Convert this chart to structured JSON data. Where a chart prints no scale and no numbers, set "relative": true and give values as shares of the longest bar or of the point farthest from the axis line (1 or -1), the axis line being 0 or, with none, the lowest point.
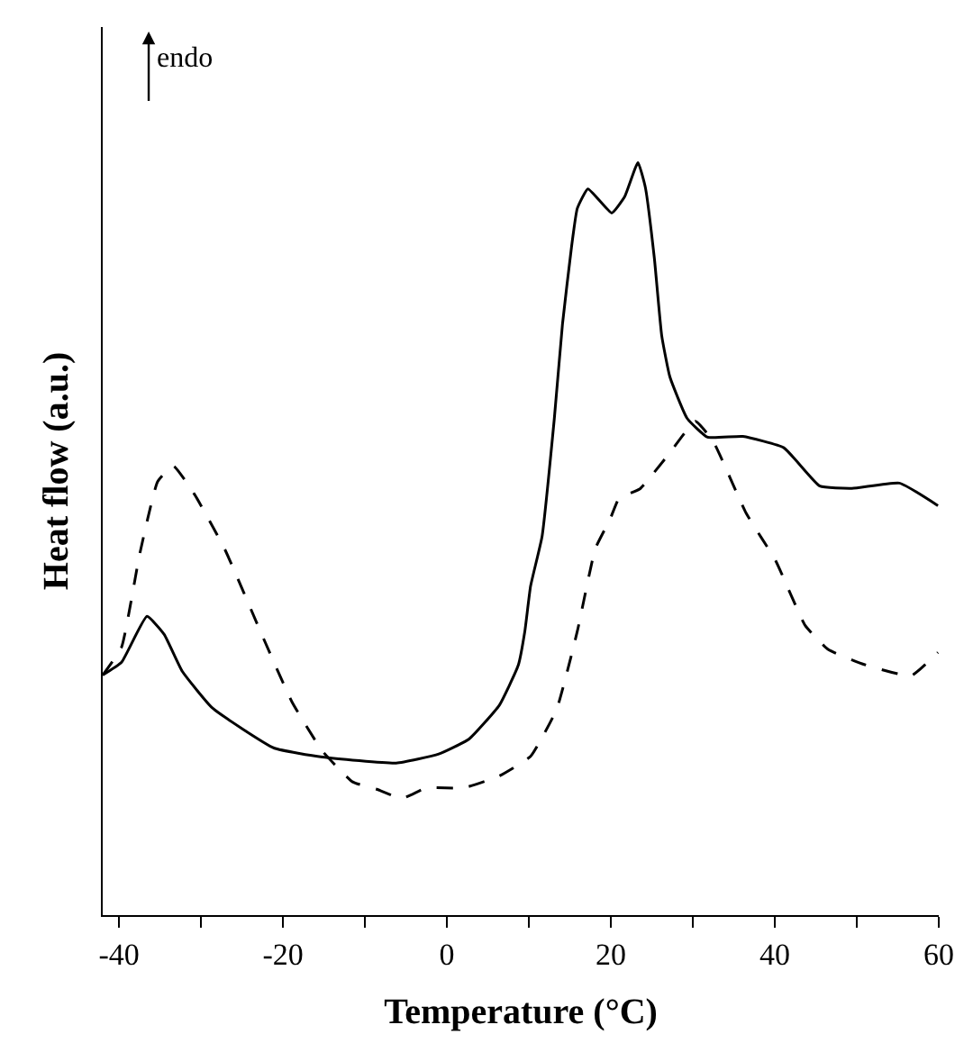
{
  "chart_data": {
    "type": "line",
    "relative": true,
    "xlabel": "Temperature (°C)",
    "ylabel": "Heat flow (a.u.)",
    "xlim": [
      -42,
      60
    ],
    "xticks": [
      -40,
      {
        "value": -30,
        "label": null
      },
      -20,
      {
        "value": -10,
        "label": null
      },
      0,
      {
        "value": 10,
        "label": null
      },
      20,
      {
        "value": 30,
        "label": null
      },
      40,
      {
        "value": 50,
        "label": null
      },
      60
    ],
    "tick_labels": "x",
    "annotations": [
      "endo"
    ],
    "series": [
      {
        "color": "#000000",
        "line_style": "solid",
        "x": [
          -42,
          -39.7,
          -36.6,
          -34.5,
          -32.3,
          -28.6,
          -21.1,
          -15.2,
          -6.2,
          -1.0,
          2.7,
          6.4,
          8.7,
          9.5,
          10.2,
          11.6,
          13.1,
          14.1,
          15.2,
          15.9,
          17.2,
          20.1,
          21.7,
          23.3,
          24.2,
          25.3,
          26.2,
          27.2,
          29.3,
          31.8,
          36.1,
          41.1,
          45.5,
          49.4,
          55.2,
          59.9
        ],
        "values": [
          0.319,
          0.336,
          0.397,
          0.373,
          0.324,
          0.275,
          0.222,
          0.21,
          0.202,
          0.214,
          0.234,
          0.279,
          0.332,
          0.377,
          0.437,
          0.503,
          0.66,
          0.786,
          0.888,
          0.939,
          0.965,
          0.933,
          0.955,
          1.0,
          0.967,
          0.873,
          0.77,
          0.715,
          0.66,
          0.635,
          0.636,
          0.621,
          0.57,
          0.567,
          0.574,
          0.544
        ]
      },
      {
        "color": "#000000",
        "line_style": "dashed",
        "x": [
          -42,
          -39.7,
          -37.5,
          -35.3,
          -33.4,
          -30.8,
          -27.1,
          -22.6,
          -18.9,
          -15.2,
          -11.5,
          -8.5,
          -5.5,
          -2.5,
          2.0,
          6.4,
          10.2,
          13.4,
          15.9,
          18.1,
          19.9,
          21.0,
          23.5,
          27.1,
          30.3,
          32.5,
          36.5,
          40.1,
          43.7,
          46.5,
          50.9,
          56.6,
          59.9
        ],
        "values": [
          0.319,
          0.356,
          0.479,
          0.576,
          0.597,
          0.559,
          0.486,
          0.373,
          0.283,
          0.218,
          0.177,
          0.167,
          0.155,
          0.169,
          0.169,
          0.185,
          0.211,
          0.274,
          0.377,
          0.487,
          0.526,
          0.554,
          0.566,
          0.613,
          0.656,
          0.629,
          0.534,
          0.471,
          0.385,
          0.353,
          0.333,
          0.318,
          0.349
        ]
      }
    ]
  }
}
